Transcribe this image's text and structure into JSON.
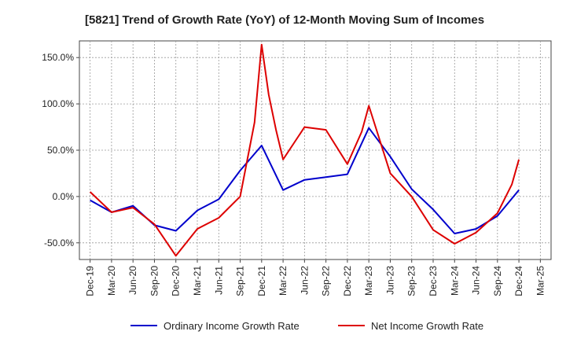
{
  "chart_data": {
    "type": "line",
    "title": "[5821]  Trend of Growth Rate (YoY) of 12-Month Moving Sum of Incomes",
    "xlabel": "",
    "ylabel": "",
    "ylim": [
      -68,
      168
    ],
    "y_ticks": [
      150,
      100,
      50,
      0,
      -50
    ],
    "y_tick_labels": [
      "150.0%",
      "100.0%",
      "50.0%",
      "0.0%",
      "-50.0%"
    ],
    "x_tick_labels": [
      "Dec-19",
      "Mar-20",
      "Jun-20",
      "Sep-20",
      "Dec-20",
      "Mar-21",
      "Jun-21",
      "Sep-21",
      "Dec-21",
      "Mar-22",
      "Jun-22",
      "Sep-22",
      "Dec-22",
      "Mar-23",
      "Jun-23",
      "Sep-23",
      "Dec-23",
      "Mar-24",
      "Jun-24",
      "Sep-24",
      "Dec-24",
      "Mar-25"
    ],
    "grid": true,
    "legend_position": "bottom",
    "series": [
      {
        "name": "Ordinary Income Growth Rate",
        "color": "#0000cc",
        "x": [
          0,
          1,
          2,
          3,
          4,
          5,
          6,
          7,
          8,
          9,
          10,
          11,
          12,
          13,
          14,
          15,
          16,
          17,
          18,
          19,
          20
        ],
        "values": [
          -4,
          -17,
          -10,
          -31,
          -37,
          -15,
          -3,
          28,
          55,
          7,
          18,
          21,
          24,
          74,
          43,
          8,
          -14,
          -40,
          -35,
          -21,
          7
        ]
      },
      {
        "name": "Net Income Growth Rate",
        "color": "#dd0000",
        "x": [
          0,
          1,
          2,
          3,
          4,
          5,
          6,
          7,
          7.67,
          8,
          8.33,
          8.67,
          9,
          10,
          11,
          12,
          12.67,
          13,
          14,
          15,
          16,
          17,
          18,
          19,
          19.67,
          20
        ],
        "values": [
          5,
          -17,
          -12,
          -30,
          -64,
          -35,
          -23,
          0,
          80,
          164,
          110,
          72,
          40,
          75,
          72,
          35,
          70,
          98,
          25,
          0,
          -36,
          -51,
          -39,
          -18,
          13,
          40
        ]
      }
    ]
  }
}
